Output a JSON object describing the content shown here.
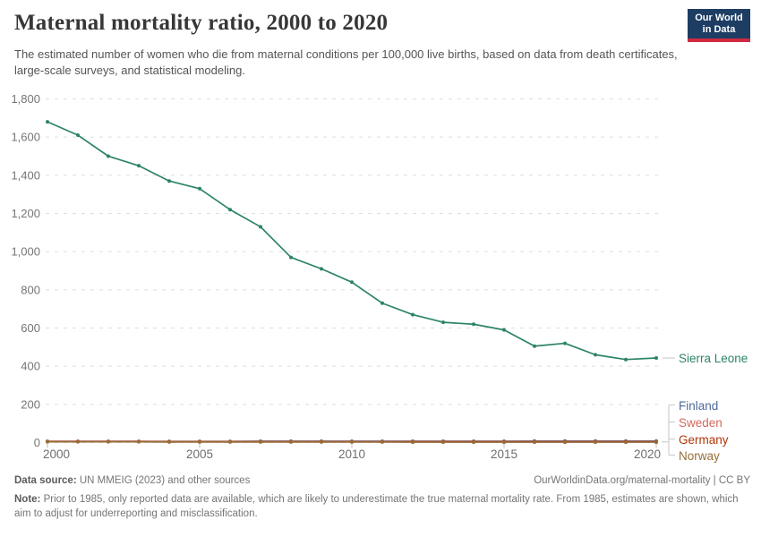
{
  "header": {
    "title": "Maternal mortality ratio, 2000 to 2020",
    "subtitle": "The estimated number of women who die from maternal conditions per 100,000 live births, based on data from death certificates, large-scale surveys, and statistical modeling.",
    "logo": {
      "line1": "Our World",
      "line2": "in Data",
      "bg_color": "#1d3d63",
      "accent_color": "#cf2a41"
    }
  },
  "chart_data": {
    "type": "line",
    "title": "Maternal mortality ratio, 2000 to 2020",
    "xlabel": "",
    "ylabel": "",
    "x": [
      2000,
      2001,
      2002,
      2003,
      2004,
      2005,
      2006,
      2007,
      2008,
      2009,
      2010,
      2011,
      2012,
      2013,
      2014,
      2015,
      2016,
      2017,
      2018,
      2019,
      2020
    ],
    "series": [
      {
        "name": "Sierra Leone",
        "color": "#2C8465",
        "values": [
          1680,
          1610,
          1500,
          1450,
          1370,
          1330,
          1220,
          1130,
          970,
          910,
          840,
          730,
          670,
          630,
          620,
          590,
          505,
          520,
          460,
          435,
          443
        ]
      },
      {
        "name": "Finland",
        "color": "#4C6A9C",
        "values": [
          6,
          6,
          6,
          6,
          6,
          6,
          6,
          7,
          7,
          7,
          7,
          7,
          7,
          7,
          7,
          7,
          8,
          8,
          8,
          8,
          8
        ]
      },
      {
        "name": "Sweden",
        "color": "#D2695E",
        "values": [
          5,
          5,
          5,
          5,
          5,
          5,
          5,
          5,
          5,
          5,
          5,
          5,
          5,
          5,
          5,
          5,
          5,
          5,
          5,
          5,
          5
        ]
      },
      {
        "name": "Germany",
        "color": "#B13507",
        "values": [
          6,
          6,
          6,
          6,
          5,
          5,
          5,
          5,
          5,
          5,
          4,
          4,
          4,
          4,
          4,
          4,
          4,
          4,
          4,
          4,
          4
        ]
      },
      {
        "name": "Norway",
        "color": "#996D39",
        "values": [
          4,
          4,
          4,
          4,
          3,
          3,
          3,
          3,
          3,
          3,
          3,
          3,
          2,
          2,
          2,
          2,
          2,
          2,
          2,
          2,
          2
        ]
      }
    ],
    "ylim": [
      0,
      1800
    ],
    "yticks": [
      0,
      200,
      400,
      600,
      800,
      1000,
      1200,
      1400,
      1600,
      1800
    ],
    "ytick_labels": [
      "0",
      "200",
      "400",
      "600",
      "800",
      "1,000",
      "1,200",
      "1,400",
      "1,600",
      "1,800"
    ],
    "xticks": [
      2000,
      2005,
      2010,
      2015,
      2020
    ],
    "xtick_labels": [
      "2000",
      "2005",
      "2010",
      "2015",
      "2020"
    ],
    "grid": "horizontal-dashed",
    "legend_position": "right-of-line-ends",
    "colors": {
      "grid": "#dedede",
      "axis_tick": "#bcbcbc",
      "y_label": "#757575",
      "x_label": "#6e6e6e",
      "connector": "#cfcfcf"
    }
  },
  "footer": {
    "datasource_label": "Data source:",
    "datasource_text": " UN MMEIG (2023) and other sources",
    "link_text": "OurWorldinData.org/maternal-mortality | CC BY",
    "note_label": "Note:",
    "note_text": " Prior to 1985, only reported data are available, which are likely to underestimate the true maternal mortality rate. From 1985, estimates are shown, which aim to adjust for underreporting and misclassification."
  }
}
